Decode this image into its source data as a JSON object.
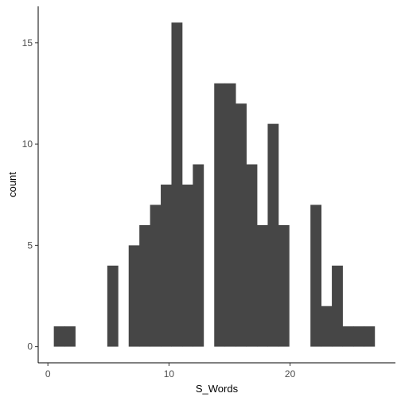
{
  "chart_data": {
    "type": "bar",
    "chart_style": "histogram",
    "xlabel": "S_Words",
    "ylabel": "count",
    "xlim": [
      -0.8,
      28.7
    ],
    "ylim": [
      -0.8,
      16.8
    ],
    "x_ticks": [
      0,
      10,
      20
    ],
    "y_ticks": [
      0,
      5,
      10,
      15
    ],
    "bar_color": "#464646",
    "bin_width": 0.883,
    "bin_start": 0.491,
    "counts": [
      1,
      1,
      0,
      0,
      0,
      4,
      0,
      5,
      6,
      7,
      8,
      16,
      8,
      9,
      0,
      13,
      13,
      12,
      9,
      6,
      11,
      6,
      0,
      0,
      7,
      2,
      4,
      1,
      1,
      1
    ],
    "grid": false,
    "legend": "none"
  }
}
